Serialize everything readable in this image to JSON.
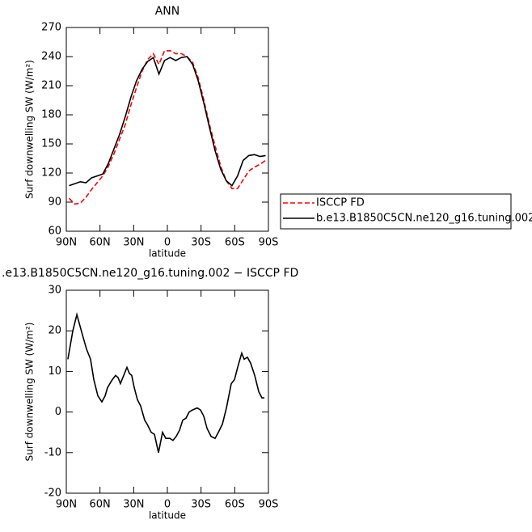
{
  "chart_data": [
    {
      "type": "line",
      "title": "ANN",
      "ylabel": "Surf downwelling SW (W/m²)",
      "xlabel": "latitude",
      "x": [
        87.5,
        82.5,
        77.5,
        72.5,
        67.5,
        62.5,
        57.5,
        52.5,
        47.5,
        42.5,
        37.5,
        32.5,
        27.5,
        22.5,
        17.5,
        12.5,
        7.5,
        2.5,
        -2.5,
        -7.5,
        -12.5,
        -17.5,
        -22.5,
        -27.5,
        -32.5,
        -37.5,
        -42.5,
        -47.5,
        -52.5,
        -57.5,
        -62.5,
        -67.5,
        -72.5,
        -77.5,
        -82.5,
        -87.5
      ],
      "series": [
        {
          "name": "ISCCP FD",
          "color": "#ff0000",
          "line_style": "dashed",
          "values": [
            94,
            88,
            89,
            95,
            103,
            110,
            117,
            127,
            140,
            155,
            170,
            190,
            208,
            225,
            237,
            243,
            232,
            246,
            246,
            243,
            243,
            240,
            234,
            218,
            195,
            170,
            148,
            127,
            112,
            104,
            104,
            113,
            122,
            126,
            129,
            133
          ]
        },
        {
          "name": "b.e13.B1850C5CN.ne120_g16.tuning.002",
          "color": "#000000",
          "line_style": "solid",
          "values": [
            107,
            109,
            111,
            110,
            115,
            117,
            119,
            130,
            145,
            160,
            178,
            198,
            215,
            227,
            235,
            239,
            222,
            236,
            239,
            236,
            239,
            240,
            232,
            215,
            192,
            167,
            143,
            124,
            112,
            107,
            117,
            133,
            138,
            139,
            137,
            138
          ]
        }
      ],
      "xlim": [
        90,
        -90
      ],
      "xticks": [
        {
          "value": 90,
          "label": "90N"
        },
        {
          "value": 60,
          "label": "60N"
        },
        {
          "value": 30,
          "label": "30N"
        },
        0,
        {
          "value": -30,
          "label": "30S"
        },
        {
          "value": -60,
          "label": "60S"
        },
        {
          "value": -90,
          "label": "90S"
        }
      ],
      "ylim": [
        60,
        270
      ],
      "yticks": [
        60,
        90,
        120,
        150,
        180,
        210,
        240,
        270
      ],
      "legend": "outside right"
    },
    {
      "type": "line",
      "title": ".e13.B1850C5CN.ne120_g16.tuning.002 − ISCCP FD",
      "ylabel": "Surf downwelling SW (W/m²)",
      "xlabel": "latitude",
      "x": [
        88.6,
        84.2,
        80.6,
        75.6,
        72,
        68.4,
        65.5,
        61.9,
        58.3,
        55.4,
        53.3,
        49,
        46.1,
        43.9,
        41.8,
        38.9,
        36,
        33.8,
        31.7,
        29.5,
        26.6,
        23.8,
        20.2,
        18,
        14.4,
        11.5,
        7.9,
        4.3,
        1.4,
        -2.2,
        -5,
        -7.9,
        -10.8,
        -13.7,
        -16.6,
        -19.4,
        -22.3,
        -26.6,
        -29.5,
        -32.4,
        -35.3,
        -38.9,
        -42.5,
        -45.4,
        -49,
        -52.6,
        -56.9,
        -59.8,
        -62.6,
        -66.2,
        -68.4,
        -71.3,
        -74.2,
        -77.8,
        -81.4,
        -84.2,
        -86.4
      ],
      "series": [
        {
          "color": "#000000",
          "line_style": "solid",
          "values": [
            13,
            20,
            24,
            19,
            15.5,
            13,
            8,
            4,
            2.5,
            4,
            6,
            8,
            9,
            8.5,
            7,
            9,
            11,
            9.5,
            9,
            6,
            3,
            1.5,
            -2,
            -3,
            -5,
            -5.5,
            -10,
            -5,
            -6.5,
            -6.5,
            -7,
            -6,
            -4.5,
            -2,
            -1.5,
            0,
            0.5,
            1,
            0.5,
            -1,
            -4,
            -6,
            -6.5,
            -5,
            -3,
            1,
            7,
            8,
            11,
            14.5,
            13,
            13.5,
            12,
            9,
            5,
            3.5,
            3.5
          ]
        }
      ],
      "xlim": [
        90,
        -90
      ],
      "xticks": [
        {
          "value": 90,
          "label": "90N"
        },
        {
          "value": 60,
          "label": "60N"
        },
        {
          "value": 30,
          "label": "30N"
        },
        0,
        {
          "value": -30,
          "label": "30S"
        },
        {
          "value": -60,
          "label": "60S"
        },
        {
          "value": -90,
          "label": "90S"
        }
      ],
      "ylim": [
        -20,
        30
      ],
      "yticks": [
        -20,
        -10,
        0,
        10,
        20,
        30
      ]
    }
  ]
}
